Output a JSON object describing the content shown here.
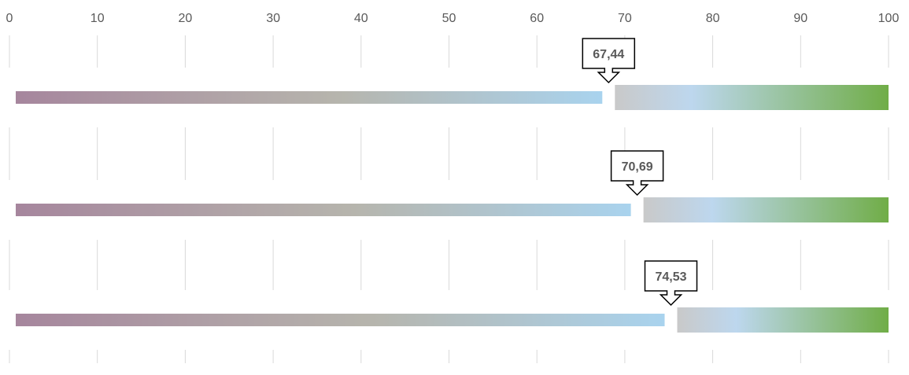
{
  "chart_data": {
    "type": "bar",
    "orientation": "horizontal",
    "xlim": [
      0,
      100
    ],
    "x_ticks": [
      "0",
      "10",
      "20",
      "30",
      "40",
      "50",
      "60",
      "70",
      "80",
      "90",
      "100"
    ],
    "x_tick_values": [
      0,
      10,
      20,
      30,
      40,
      50,
      60,
      70,
      80,
      90,
      100
    ],
    "grid": "vertical",
    "rows": [
      {
        "value": 67.44,
        "label": "67,44"
      },
      {
        "value": 70.69,
        "label": "70,69"
      },
      {
        "value": 74.53,
        "label": "74,53"
      }
    ],
    "colors": {
      "value_bar_start": "#a6869d",
      "value_bar_mid": "#b6b5ad",
      "value_bar_end": "#a9d3ee",
      "remainder_start": "#c9c9c9",
      "remainder_mid": "#bdd7ee",
      "remainder_end": "#70ad47",
      "gridline": "#d9d9d9",
      "text": "#595959"
    }
  }
}
